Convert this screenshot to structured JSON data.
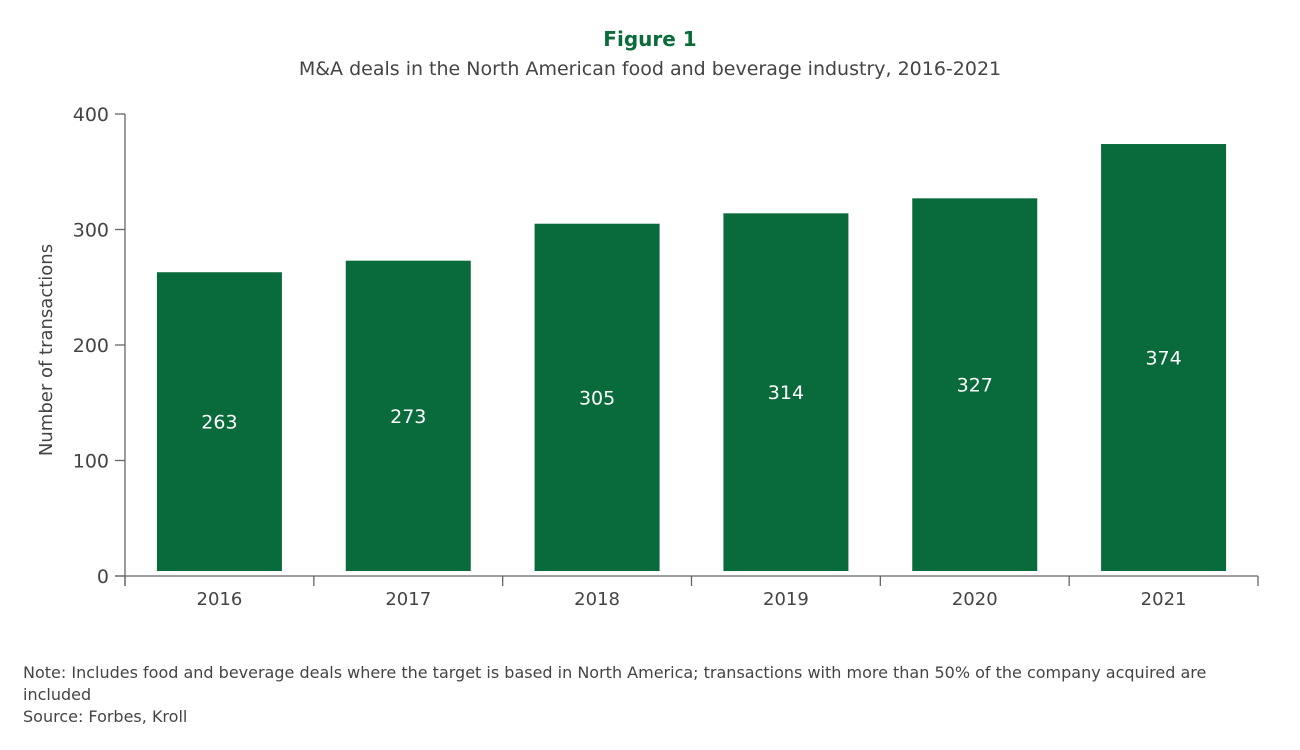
{
  "figure_label": "Figure 1",
  "chart_data": {
    "type": "bar",
    "title": "M&A deals in the North American food and beverage industry, 2016-2021",
    "xlabel": "",
    "ylabel": "Number of transactions",
    "categories": [
      "2016",
      "2017",
      "2018",
      "2019",
      "2020",
      "2021"
    ],
    "values": [
      263,
      273,
      305,
      314,
      327,
      374
    ],
    "ylim": [
      0,
      400
    ],
    "yticks": [
      0,
      100,
      200,
      300,
      400
    ],
    "grid": false,
    "bar_color": "#096a3b",
    "data_labels": true
  },
  "note": "Note: Includes food and beverage deals where the target is based in North America; transactions with more than 50% of the company acquired are included",
  "source": "Source: Forbes, Kroll"
}
